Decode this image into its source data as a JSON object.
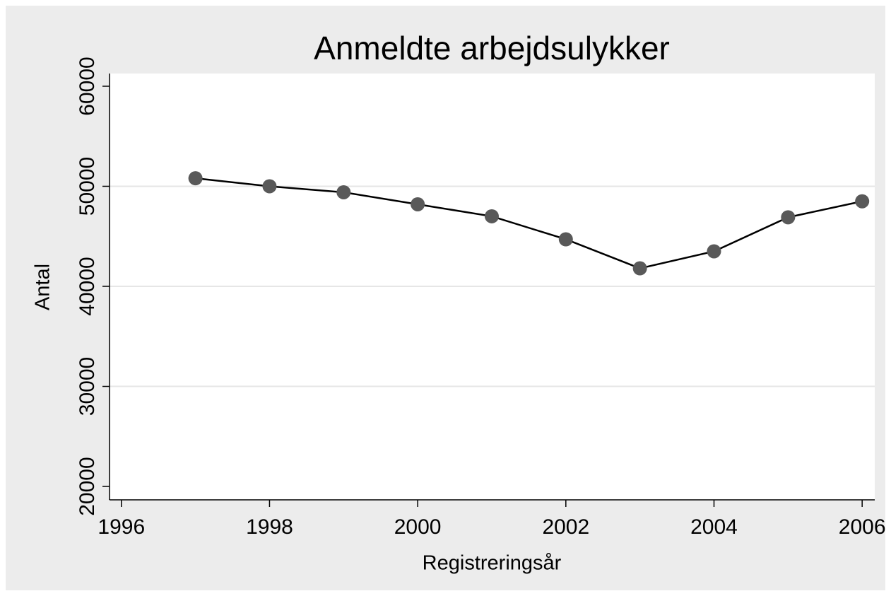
{
  "chart_data": {
    "type": "line",
    "title": "Anmeldte arbejdsulykker",
    "x_label": "Registreringsår",
    "y_label": "Antal",
    "x": [
      1997,
      1998,
      1999,
      2000,
      2001,
      2002,
      2003,
      2004,
      2005,
      2006
    ],
    "series": [
      {
        "name": "Antal",
        "color": "#595959",
        "values": [
          50800,
          50000,
          49400,
          48200,
          47000,
          44700,
          41800,
          43500,
          46900,
          48500
        ]
      }
    ],
    "xlim": [
      1995.84,
      2006.17
    ],
    "ylim": [
      18660,
      61270
    ],
    "xticks": [
      1996,
      1998,
      2000,
      2002,
      2004,
      2006
    ],
    "yticks": [
      20000,
      30000,
      40000,
      50000,
      60000
    ],
    "grid": true
  }
}
